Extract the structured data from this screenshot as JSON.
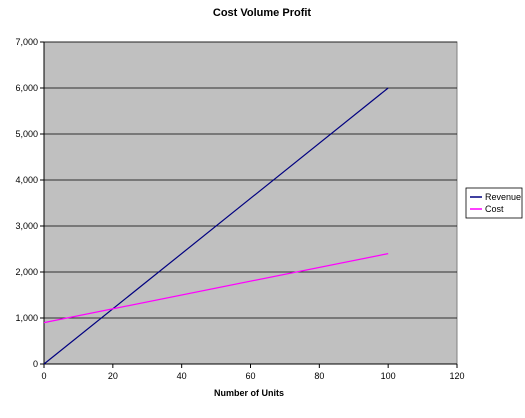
{
  "chart_data": {
    "type": "line",
    "title": "Cost Volume Profit",
    "xlabel": "Number of Units",
    "ylabel": "",
    "xlim": [
      0,
      120
    ],
    "ylim": [
      0,
      7000
    ],
    "x_ticks": [
      0,
      20,
      40,
      60,
      80,
      100,
      120
    ],
    "y_ticks": [
      0,
      1000,
      2000,
      3000,
      4000,
      5000,
      6000,
      7000
    ],
    "x_tick_labels": [
      "0",
      "20",
      "40",
      "60",
      "80",
      "100",
      "120"
    ],
    "y_tick_labels": [
      "0",
      "1,000",
      "2,000",
      "3,000",
      "4,000",
      "5,000",
      "6,000",
      "7,000"
    ],
    "grid": "horizontal",
    "legend_position": "right",
    "plot_background": "#c0c0c0",
    "series": [
      {
        "name": "Revenue",
        "color": "#000080",
        "x": [
          0,
          100
        ],
        "y": [
          0,
          6000
        ]
      },
      {
        "name": "Cost",
        "color": "#ff00ff",
        "x": [
          0,
          100
        ],
        "y": [
          900,
          2400
        ]
      }
    ]
  }
}
